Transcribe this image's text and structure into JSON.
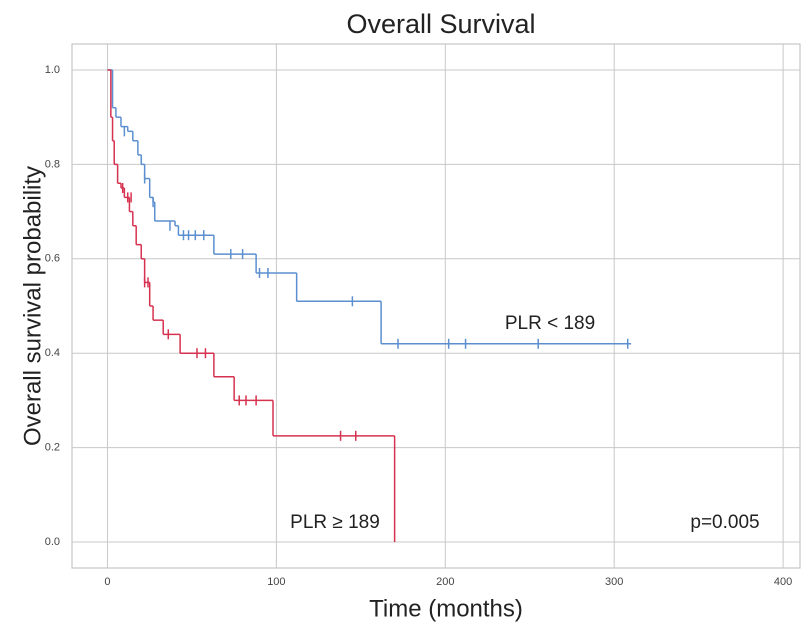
{
  "chart_data": {
    "type": "km",
    "title": "Overall Survival",
    "x_label": "Time (months)",
    "y_label": "Overall survival probability",
    "xlim": [
      -21,
      410
    ],
    "ylim": [
      -0.055,
      1.055
    ],
    "xticks": [
      0,
      100,
      200,
      300,
      400
    ],
    "yticks": [
      {
        "value": 0,
        "label": "0.0"
      },
      {
        "value": 0.2,
        "label": "0.2"
      },
      {
        "value": 0.4,
        "label": "0.4"
      },
      {
        "value": 0.6,
        "label": "0.6"
      },
      {
        "value": 0.8,
        "label": "0.8"
      },
      {
        "value": 1,
        "label": "1.0"
      }
    ],
    "grid": true,
    "series": [
      {
        "name": "PLR < 189",
        "color": "#5b8fd0",
        "times": [
          0,
          3,
          5,
          8,
          12,
          15,
          18,
          20,
          22,
          25,
          27,
          28,
          40,
          42,
          63,
          88,
          112,
          162,
          310
        ],
        "values": [
          1.0,
          0.92,
          0.9,
          0.88,
          0.87,
          0.85,
          0.82,
          0.8,
          0.77,
          0.73,
          0.72,
          0.68,
          0.67,
          0.65,
          0.61,
          0.57,
          0.51,
          0.42,
          0.42
        ],
        "censor_x": [
          10,
          22,
          27,
          37,
          45,
          48,
          52,
          57,
          73,
          80,
          90,
          95,
          145,
          172,
          202,
          212,
          255,
          308
        ],
        "censor_y": [
          0.87,
          0.77,
          0.72,
          0.67,
          0.65,
          0.65,
          0.65,
          0.65,
          0.61,
          0.61,
          0.57,
          0.57,
          0.51,
          0.42,
          0.42,
          0.42,
          0.42,
          0.42
        ]
      },
      {
        "name": "PLR ≥ 189",
        "color": "#d6324f",
        "times": [
          0,
          2,
          3,
          4,
          6,
          8,
          10,
          13,
          15,
          17,
          20,
          22,
          25,
          27,
          33,
          43,
          63,
          75,
          98,
          170
        ],
        "values": [
          1.0,
          0.9,
          0.85,
          0.8,
          0.76,
          0.75,
          0.73,
          0.7,
          0.67,
          0.63,
          0.6,
          0.55,
          0.5,
          0.47,
          0.44,
          0.4,
          0.35,
          0.3,
          0.225,
          0
        ],
        "censor_x": [
          9,
          12,
          14,
          22,
          24,
          36,
          53,
          58,
          78,
          82,
          88,
          138,
          147
        ],
        "censor_y": [
          0.75,
          0.73,
          0.73,
          0.55,
          0.55,
          0.44,
          0.4,
          0.4,
          0.3,
          0.3,
          0.3,
          0.225,
          0.225
        ]
      }
    ],
    "annotation": "p=0.005"
  }
}
